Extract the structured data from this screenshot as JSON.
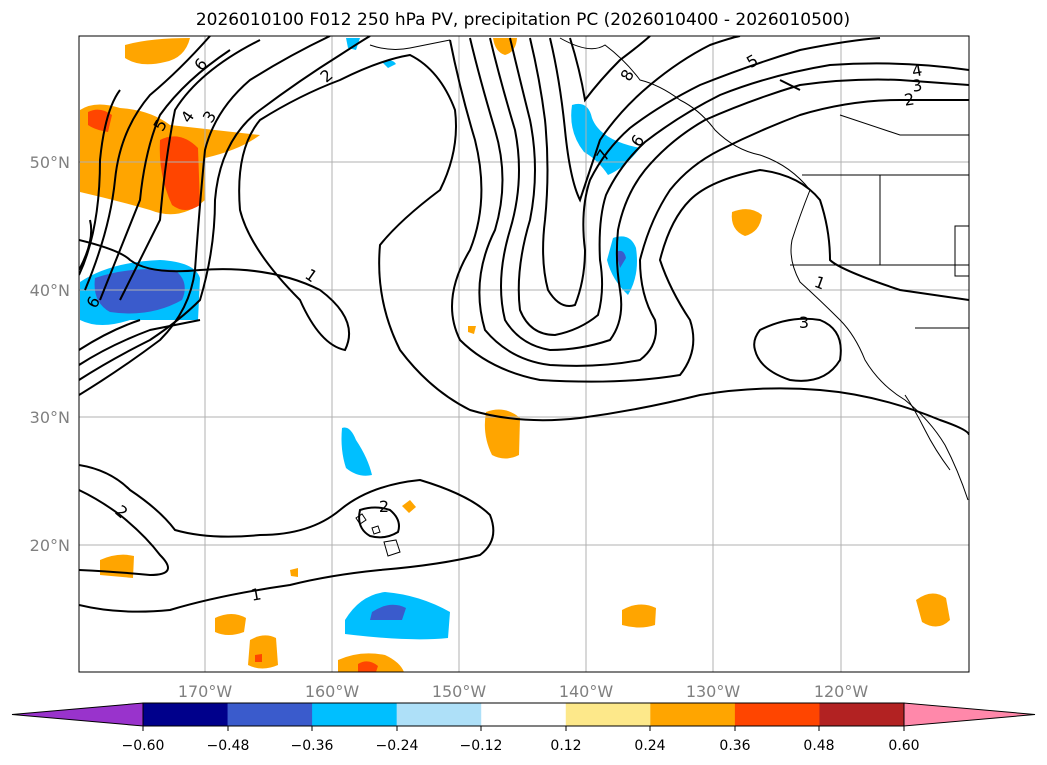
{
  "title": "2026010100 F012 250 hPa PV, precipitation PC (2026010400 - 2026010500)",
  "map": {
    "lon_labels": [
      "170°W",
      "160°W",
      "150°W",
      "140°W",
      "130°W",
      "120°W"
    ],
    "lat_labels": [
      "50°N",
      "40°N",
      "30°N",
      "20°N"
    ]
  },
  "contour_labels": [
    "6",
    "2",
    "5",
    "4",
    "3",
    "8",
    "7",
    "6",
    "5",
    "4",
    "3",
    "2",
    "1",
    "1",
    "3",
    "6",
    "2",
    "2",
    "1"
  ],
  "colorbar": {
    "ticks": [
      "−0.60",
      "−0.48",
      "−0.36",
      "−0.24",
      "−0.12",
      "0.12",
      "0.24",
      "0.36",
      "0.48",
      "0.60"
    ],
    "colors": [
      "#9933cc",
      "#00008b",
      "#3a5bcc",
      "#00bfff",
      "#aee0f8",
      "#ffffff",
      "#fde88a",
      "#ffa500",
      "#ff4500",
      "#b22222",
      "#ff88aa"
    ]
  }
}
